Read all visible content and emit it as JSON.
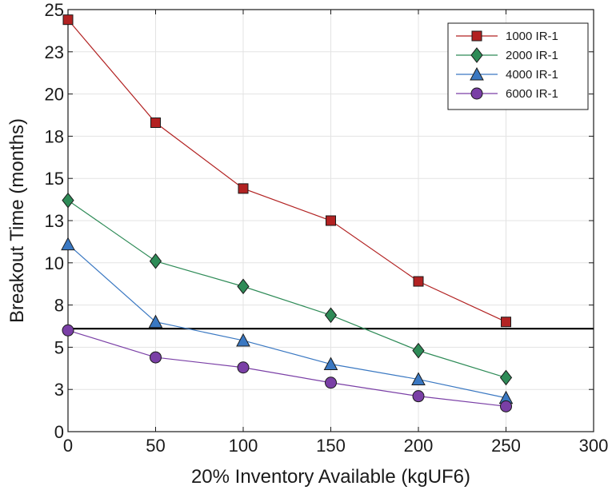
{
  "chart_data": {
    "type": "line",
    "title": "",
    "xlabel": "20% Inventory Available (kgUF6)",
    "ylabel": "Breakout Time (months)",
    "xlim": [
      0,
      300
    ],
    "ylim": [
      0,
      25
    ],
    "x_ticks": [
      0,
      50,
      100,
      150,
      200,
      250,
      300
    ],
    "x_tick_labels": [
      "0",
      "50",
      "100",
      "150",
      "200",
      "250",
      "300"
    ],
    "y_ticks": [
      0,
      2.5,
      5,
      7.5,
      10,
      12.5,
      15,
      17.5,
      20,
      22.5,
      25
    ],
    "y_tick_labels": [
      "0",
      "3",
      "5",
      "8",
      "10",
      "13",
      "15",
      "18",
      "20",
      "23",
      "25"
    ],
    "grid": true,
    "legend_position": "top-right",
    "reference_line": {
      "y": 6.1,
      "color": "#000000"
    },
    "x": [
      0,
      50,
      100,
      150,
      200,
      250
    ],
    "series": [
      {
        "name": "1000 IR-1",
        "values": [
          24.4,
          18.3,
          14.4,
          12.5,
          8.9,
          6.5
        ],
        "color": "#b22222",
        "marker": "square"
      },
      {
        "name": "2000 IR-1",
        "values": [
          13.7,
          10.1,
          8.6,
          6.9,
          4.8,
          3.2
        ],
        "color": "#2e8b57",
        "marker": "diamond"
      },
      {
        "name": "4000 IR-1",
        "values": [
          11.1,
          6.5,
          5.4,
          4.0,
          3.1,
          2.0
        ],
        "color": "#3a78c2",
        "marker": "triangle"
      },
      {
        "name": "6000 IR-1",
        "values": [
          6.0,
          4.4,
          3.8,
          2.9,
          2.1,
          1.5
        ],
        "color": "#7a3fa6",
        "marker": "circle"
      }
    ]
  }
}
